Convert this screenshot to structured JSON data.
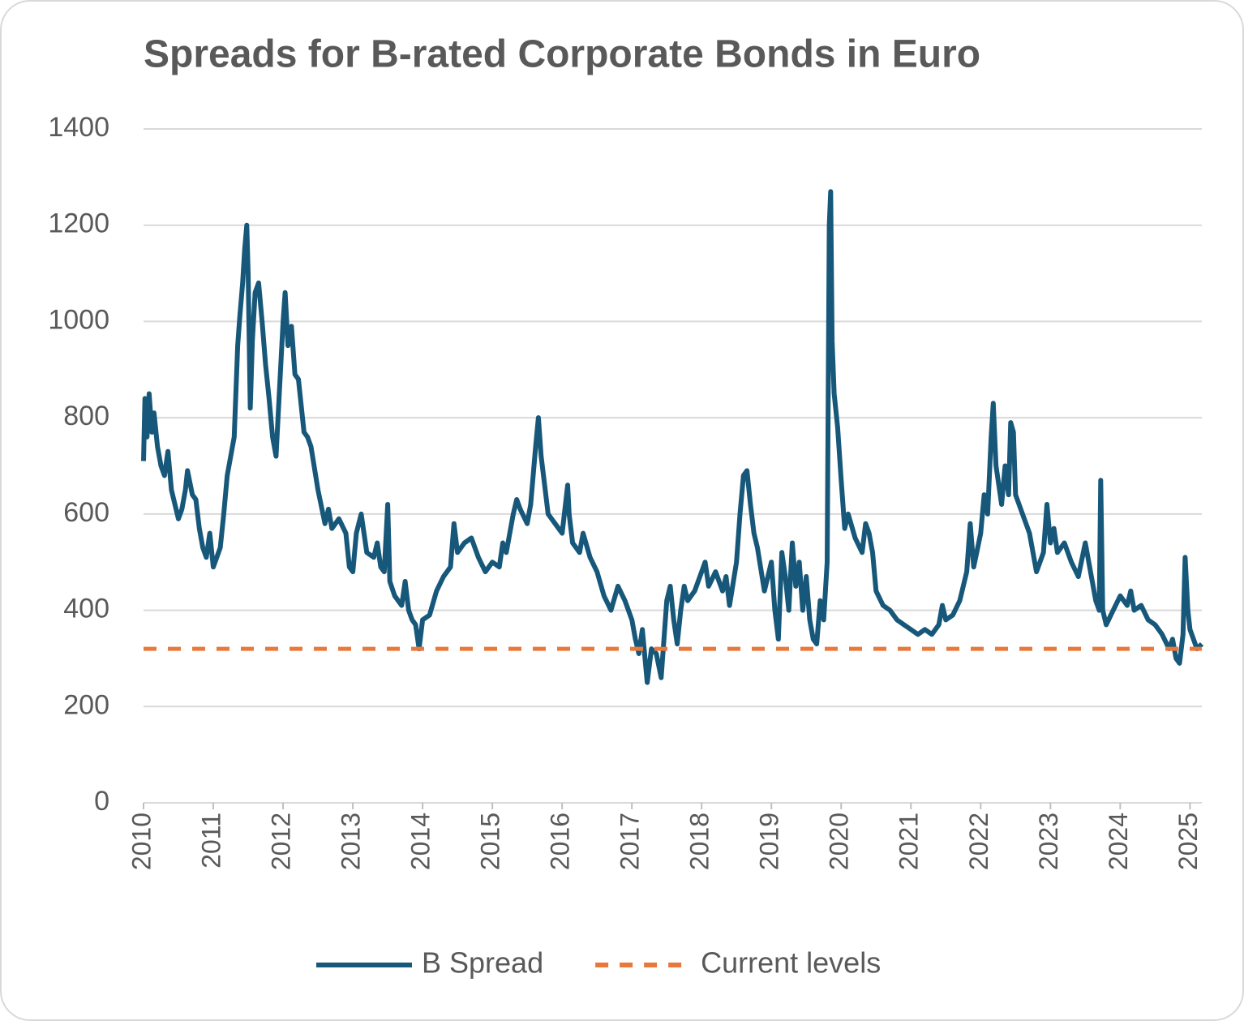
{
  "chart_data": {
    "type": "line",
    "title": "Spreads for B-rated Corporate Bonds in Euro",
    "xlim": [
      2010,
      2025.17
    ],
    "xticks": [
      2010,
      2011,
      2012,
      2013,
      2014,
      2015,
      2016,
      2017,
      2018,
      2019,
      2020,
      2021,
      2022,
      2023,
      2024,
      2025
    ],
    "ylim": [
      0,
      1400
    ],
    "yticks": [
      0,
      200,
      400,
      600,
      800,
      1000,
      1200,
      1400
    ],
    "grid": true,
    "legend": "bottom",
    "series": [
      {
        "name": "B Spread",
        "color": "#17587a",
        "style": "solid",
        "x": [
          2010.0,
          2010.02,
          2010.05,
          2010.08,
          2010.12,
          2010.15,
          2010.2,
          2010.25,
          2010.3,
          2010.35,
          2010.4,
          2010.45,
          2010.5,
          2010.55,
          2010.6,
          2010.63,
          2010.7,
          2010.75,
          2010.8,
          2010.85,
          2010.9,
          2010.95,
          2011.0,
          2011.05,
          2011.1,
          2011.15,
          2011.2,
          2011.25,
          2011.3,
          2011.35,
          2011.38,
          2011.42,
          2011.45,
          2011.48,
          2011.5,
          2011.53,
          2011.56,
          2011.6,
          2011.65,
          2011.7,
          2011.75,
          2011.8,
          2011.85,
          2011.9,
          2011.95,
          2012.0,
          2012.03,
          2012.07,
          2012.12,
          2012.17,
          2012.22,
          2012.3,
          2012.35,
          2012.4,
          2012.5,
          2012.6,
          2012.65,
          2012.7,
          2012.8,
          2012.9,
          2012.95,
          2013.0,
          2013.05,
          2013.12,
          2013.2,
          2013.3,
          2013.35,
          2013.4,
          2013.45,
          2013.5,
          2013.53,
          2013.6,
          2013.7,
          2013.75,
          2013.8,
          2013.85,
          2013.9,
          2013.95,
          2014.0,
          2014.1,
          2014.2,
          2014.3,
          2014.4,
          2014.45,
          2014.5,
          2014.6,
          2014.7,
          2014.8,
          2014.9,
          2015.0,
          2015.1,
          2015.15,
          2015.2,
          2015.3,
          2015.35,
          2015.4,
          2015.5,
          2015.55,
          2015.62,
          2015.66,
          2015.7,
          2015.75,
          2015.8,
          2015.9,
          2016.0,
          2016.08,
          2016.1,
          2016.15,
          2016.25,
          2016.3,
          2016.4,
          2016.5,
          2016.6,
          2016.7,
          2016.8,
          2016.9,
          2017.0,
          2017.05,
          2017.1,
          2017.15,
          2017.22,
          2017.28,
          2017.35,
          2017.42,
          2017.5,
          2017.55,
          2017.6,
          2017.65,
          2017.7,
          2017.75,
          2017.8,
          2017.9,
          2018.0,
          2018.05,
          2018.1,
          2018.2,
          2018.3,
          2018.35,
          2018.4,
          2018.5,
          2018.55,
          2018.6,
          2018.65,
          2018.7,
          2018.75,
          2018.8,
          2018.9,
          2019.0,
          2019.05,
          2019.1,
          2019.15,
          2019.2,
          2019.25,
          2019.3,
          2019.35,
          2019.4,
          2019.45,
          2019.5,
          2019.55,
          2019.6,
          2019.65,
          2019.7,
          2019.75,
          2019.8,
          2019.83,
          2019.85,
          2019.87,
          2019.9,
          2019.95,
          2020.0,
          2020.05,
          2020.1,
          2020.2,
          2020.3,
          2020.35,
          2020.4,
          2020.45,
          2020.5,
          2020.6,
          2020.7,
          2020.8,
          2020.9,
          2021.0,
          2021.1,
          2021.2,
          2021.3,
          2021.4,
          2021.45,
          2021.5,
          2021.6,
          2021.7,
          2021.8,
          2021.85,
          2021.9,
          2022.0,
          2022.05,
          2022.1,
          2022.15,
          2022.18,
          2022.22,
          2022.3,
          2022.35,
          2022.4,
          2022.43,
          2022.47,
          2022.5,
          2022.6,
          2022.7,
          2022.75,
          2022.8,
          2022.9,
          2022.95,
          2023.0,
          2023.05,
          2023.1,
          2023.2,
          2023.3,
          2023.4,
          2023.5,
          2023.55,
          2023.6,
          2023.65,
          2023.7,
          2023.72,
          2023.75,
          2023.8,
          2023.9,
          2024.0,
          2024.1,
          2024.15,
          2024.2,
          2024.3,
          2024.4,
          2024.5,
          2024.6,
          2024.7,
          2024.75,
          2024.8,
          2024.85,
          2024.9,
          2024.93,
          2024.97,
          2025.0,
          2025.05,
          2025.1,
          2025.17
        ],
        "values": [
          710,
          840,
          760,
          850,
          770,
          810,
          740,
          700,
          680,
          730,
          650,
          620,
          590,
          610,
          650,
          690,
          640,
          630,
          570,
          530,
          510,
          560,
          490,
          510,
          530,
          600,
          680,
          720,
          760,
          950,
          1010,
          1080,
          1150,
          1200,
          1100,
          820,
          960,
          1060,
          1080,
          1000,
          910,
          840,
          760,
          720,
          860,
          1000,
          1060,
          950,
          990,
          890,
          880,
          770,
          760,
          740,
          650,
          580,
          610,
          570,
          590,
          560,
          490,
          480,
          560,
          600,
          520,
          510,
          540,
          490,
          480,
          620,
          460,
          430,
          410,
          460,
          400,
          380,
          370,
          320,
          380,
          390,
          440,
          470,
          490,
          580,
          520,
          540,
          550,
          510,
          480,
          500,
          490,
          540,
          520,
          600,
          630,
          610,
          580,
          620,
          740,
          800,
          720,
          660,
          600,
          580,
          560,
          660,
          600,
          540,
          520,
          560,
          510,
          480,
          430,
          400,
          450,
          420,
          380,
          340,
          310,
          360,
          250,
          320,
          310,
          260,
          420,
          450,
          380,
          330,
          400,
          450,
          420,
          440,
          480,
          500,
          450,
          480,
          440,
          470,
          410,
          500,
          600,
          680,
          690,
          620,
          560,
          530,
          440,
          500,
          400,
          340,
          520,
          470,
          400,
          540,
          450,
          500,
          400,
          470,
          380,
          340,
          330,
          420,
          380,
          500,
          1200,
          1270,
          960,
          850,
          780,
          670,
          570,
          600,
          550,
          520,
          580,
          560,
          520,
          440,
          410,
          400,
          380,
          370,
          360,
          350,
          360,
          350,
          370,
          410,
          380,
          390,
          420,
          480,
          580,
          490,
          560,
          640,
          600,
          760,
          830,
          700,
          620,
          700,
          640,
          790,
          770,
          640,
          600,
          560,
          520,
          480,
          520,
          620,
          540,
          570,
          520,
          540,
          500,
          470,
          540,
          500,
          460,
          420,
          400,
          670,
          400,
          370,
          400,
          430,
          410,
          440,
          400,
          410,
          380,
          370,
          350,
          320,
          340,
          300,
          290,
          350,
          510,
          400,
          360,
          340,
          320,
          330
        ]
      },
      {
        "name": "Current levels",
        "color": "#e8793a",
        "style": "dashed",
        "x": [
          2010,
          2025.17
        ],
        "values": [
          320,
          320
        ]
      }
    ]
  }
}
